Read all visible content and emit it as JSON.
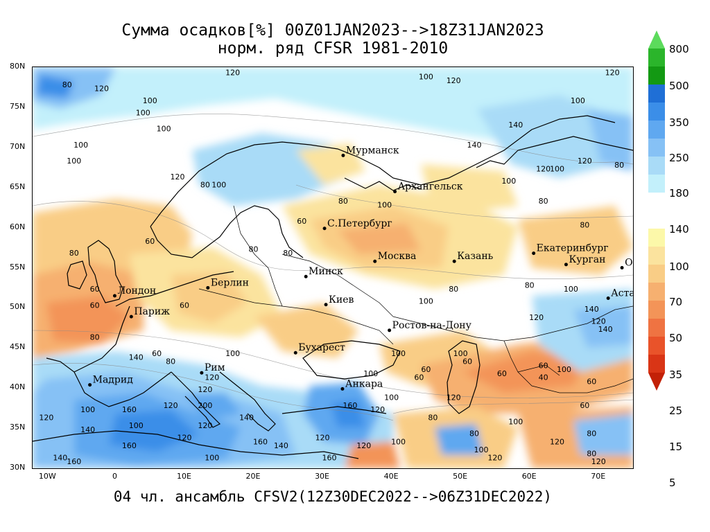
{
  "title": {
    "line1": "Сумма осадков[%] 00Z01JAN2023-->18Z31JAN2023",
    "line2": "норм. ряд CFSR 1981-2010"
  },
  "footer": "04 чл. ансамбль CFSV2(12Z30DEC2022-->06Z31DEC2022)",
  "map": {
    "lon_range": [
      -12,
      75
    ],
    "lat_range": [
      30,
      80
    ],
    "lat_ticks": [
      "80N",
      "75N",
      "70N",
      "65N",
      "60N",
      "55N",
      "50N",
      "45N",
      "40N",
      "35N",
      "30N"
    ],
    "lon_ticks": [
      "10W",
      "0",
      "10E",
      "20E",
      "30E",
      "40E",
      "50E",
      "60E",
      "70E"
    ],
    "cities": [
      {
        "name": "Мурманск",
        "lon": 33,
        "lat": 69
      },
      {
        "name": "Архангельск",
        "lon": 40.5,
        "lat": 64.5
      },
      {
        "name": "С.Петербург",
        "lon": 30.3,
        "lat": 59.9
      },
      {
        "name": "Москва",
        "lon": 37.6,
        "lat": 55.8
      },
      {
        "name": "Казань",
        "lon": 49.1,
        "lat": 55.8
      },
      {
        "name": "Екатеринбург",
        "lon": 60.6,
        "lat": 56.8
      },
      {
        "name": "Курган",
        "lon": 65.3,
        "lat": 55.4
      },
      {
        "name": "Омск",
        "lon": 73.4,
        "lat": 55
      },
      {
        "name": "Астана",
        "lon": 71.4,
        "lat": 51.2
      },
      {
        "name": "Минск",
        "lon": 27.6,
        "lat": 53.9
      },
      {
        "name": "Берлин",
        "lon": 13.4,
        "lat": 52.5
      },
      {
        "name": "Лондон",
        "lon": -0.1,
        "lat": 51.5
      },
      {
        "name": "Париж",
        "lon": 2.3,
        "lat": 48.9
      },
      {
        "name": "Киев",
        "lon": 30.5,
        "lat": 50.4
      },
      {
        "name": "Ростов-на-Дону",
        "lon": 39.7,
        "lat": 47.2
      },
      {
        "name": "Бухарест",
        "lon": 26.1,
        "lat": 44.4
      },
      {
        "name": "Анкара",
        "lon": 32.9,
        "lat": 39.9
      },
      {
        "name": "Рим",
        "lon": 12.5,
        "lat": 41.9
      },
      {
        "name": "Мадрид",
        "lon": -3.7,
        "lat": 40.4
      }
    ],
    "contour_labels": [
      {
        "v": "80",
        "lon": -7,
        "lat": 77.5
      },
      {
        "v": "100",
        "lon": 5,
        "lat": 75.5
      },
      {
        "v": "120",
        "lon": -2,
        "lat": 77
      },
      {
        "v": "100",
        "lon": 4,
        "lat": 74
      },
      {
        "v": "100",
        "lon": 7,
        "lat": 72
      },
      {
        "v": "100",
        "lon": -5,
        "lat": 70
      },
      {
        "v": "100",
        "lon": -6,
        "lat": 68
      },
      {
        "v": "120",
        "lon": 9,
        "lat": 66
      },
      {
        "v": "80",
        "lon": 13,
        "lat": 65
      },
      {
        "v": "100",
        "lon": 15,
        "lat": 65
      },
      {
        "v": "120",
        "lon": 17,
        "lat": 79
      },
      {
        "v": "100",
        "lon": 45,
        "lat": 78.5
      },
      {
        "v": "120",
        "lon": 49,
        "lat": 78
      },
      {
        "v": "120",
        "lon": 72,
        "lat": 79
      },
      {
        "v": "100",
        "lon": 67,
        "lat": 75.5
      },
      {
        "v": "140",
        "lon": 58,
        "lat": 72.5
      },
      {
        "v": "140",
        "lon": 52,
        "lat": 70
      },
      {
        "v": "120",
        "lon": 62,
        "lat": 67
      },
      {
        "v": "100",
        "lon": 64,
        "lat": 67
      },
      {
        "v": "120",
        "lon": 68,
        "lat": 68
      },
      {
        "v": "80",
        "lon": 73,
        "lat": 67.5
      },
      {
        "v": "100",
        "lon": 57,
        "lat": 65.5
      },
      {
        "v": "80",
        "lon": 62,
        "lat": 63
      },
      {
        "v": "80",
        "lon": 68,
        "lat": 60
      },
      {
        "v": "80",
        "lon": 33,
        "lat": 63
      },
      {
        "v": "100",
        "lon": 39,
        "lat": 62.5
      },
      {
        "v": "60",
        "lon": 27,
        "lat": 60.5
      },
      {
        "v": "80",
        "lon": 25,
        "lat": 56.5
      },
      {
        "v": "80",
        "lon": 20,
        "lat": 57
      },
      {
        "v": "60",
        "lon": 5,
        "lat": 58
      },
      {
        "v": "80",
        "lon": -6,
        "lat": 56.5
      },
      {
        "v": "60",
        "lon": -3,
        "lat": 52
      },
      {
        "v": "60",
        "lon": -3,
        "lat": 50
      },
      {
        "v": "60",
        "lon": 10,
        "lat": 50
      },
      {
        "v": "80",
        "lon": 49,
        "lat": 52
      },
      {
        "v": "100",
        "lon": 45,
        "lat": 50.5
      },
      {
        "v": "100",
        "lon": 66,
        "lat": 52
      },
      {
        "v": "80",
        "lon": 60,
        "lat": 52.5
      },
      {
        "v": "140",
        "lon": 69,
        "lat": 49.5
      },
      {
        "v": "120",
        "lon": 61,
        "lat": 48.5
      },
      {
        "v": "120",
        "lon": 70,
        "lat": 48
      },
      {
        "v": "140",
        "lon": 71,
        "lat": 47
      },
      {
        "v": "80",
        "lon": -3,
        "lat": 46
      },
      {
        "v": "140",
        "lon": 3,
        "lat": 43.5
      },
      {
        "v": "60",
        "lon": 6,
        "lat": 44
      },
      {
        "v": "80",
        "lon": 8,
        "lat": 43
      },
      {
        "v": "100",
        "lon": 17,
        "lat": 44
      },
      {
        "v": "120",
        "lon": 14,
        "lat": 41
      },
      {
        "v": "120",
        "lon": 13,
        "lat": 39.5
      },
      {
        "v": "200",
        "lon": 13,
        "lat": 37.5
      },
      {
        "v": "120",
        "lon": 8,
        "lat": 37.5
      },
      {
        "v": "160",
        "lon": 2,
        "lat": 37
      },
      {
        "v": "100",
        "lon": -4,
        "lat": 37
      },
      {
        "v": "120",
        "lon": -10,
        "lat": 36
      },
      {
        "v": "140",
        "lon": -4,
        "lat": 34.5
      },
      {
        "v": "100",
        "lon": 3,
        "lat": 35
      },
      {
        "v": "160",
        "lon": 2,
        "lat": 32.5
      },
      {
        "v": "120",
        "lon": 10,
        "lat": 33.5
      },
      {
        "v": "120",
        "lon": 13,
        "lat": 35
      },
      {
        "v": "140",
        "lon": -8,
        "lat": 31
      },
      {
        "v": "160",
        "lon": -6,
        "lat": 30.5
      },
      {
        "v": "100",
        "lon": 14,
        "lat": 31
      },
      {
        "v": "140",
        "lon": 19,
        "lat": 36
      },
      {
        "v": "160",
        "lon": 21,
        "lat": 33
      },
      {
        "v": "140",
        "lon": 24,
        "lat": 32.5
      },
      {
        "v": "160",
        "lon": 31,
        "lat": 31
      },
      {
        "v": "160",
        "lon": 34,
        "lat": 37.5
      },
      {
        "v": "120",
        "lon": 38,
        "lat": 37
      },
      {
        "v": "120",
        "lon": 30,
        "lat": 33.5
      },
      {
        "v": "100",
        "lon": 41,
        "lat": 33
      },
      {
        "v": "120",
        "lon": 36,
        "lat": 32.5
      },
      {
        "v": "100",
        "lon": 37,
        "lat": 41.5
      },
      {
        "v": "100",
        "lon": 41,
        "lat": 44
      },
      {
        "v": "100",
        "lon": 50,
        "lat": 44
      },
      {
        "v": "60",
        "lon": 51,
        "lat": 43
      },
      {
        "v": "60",
        "lon": 45,
        "lat": 42
      },
      {
        "v": "60",
        "lon": 44,
        "lat": 41
      },
      {
        "v": "120",
        "lon": 49,
        "lat": 38.5
      },
      {
        "v": "100",
        "lon": 40,
        "lat": 38.5
      },
      {
        "v": "80",
        "lon": 46,
        "lat": 36
      },
      {
        "v": "80",
        "lon": 52,
        "lat": 34
      },
      {
        "v": "100",
        "lon": 58,
        "lat": 35.5
      },
      {
        "v": "100",
        "lon": 53,
        "lat": 32
      },
      {
        "v": "120",
        "lon": 55,
        "lat": 31
      },
      {
        "v": "60",
        "lon": 56,
        "lat": 41.5
      },
      {
        "v": "60",
        "lon": 62,
        "lat": 42.5
      },
      {
        "v": "40",
        "lon": 62,
        "lat": 41
      },
      {
        "v": "100",
        "lon": 65,
        "lat": 42
      },
      {
        "v": "60",
        "lon": 68,
        "lat": 37.5
      },
      {
        "v": "80",
        "lon": 69,
        "lat": 34
      },
      {
        "v": "80",
        "lon": 69,
        "lat": 31.5
      },
      {
        "v": "120",
        "lon": 70,
        "lat": 30.5
      },
      {
        "v": "60",
        "lon": 69,
        "lat": 40.5
      },
      {
        "v": "120",
        "lon": 64,
        "lat": 33
      }
    ]
  },
  "colorbar": {
    "labels": [
      "800",
      "500",
      "350",
      "250",
      "180",
      "140",
      "100",
      "70",
      "50",
      "35",
      "25",
      "15",
      "5"
    ],
    "upper_colors": [
      "#5cdb5c",
      "#2bb52b",
      "#139913",
      "#1f6fd6",
      "#3b8ee8",
      "#5fa8f0",
      "#86c1f5",
      "#a9dbf7",
      "#c3f0fb"
    ],
    "lower_colors": [
      "#fcf8a9",
      "#fbe39e",
      "#f9cd86",
      "#f6b070",
      "#f39458",
      "#ef7342",
      "#e9532a",
      "#d93516",
      "#c32107"
    ]
  }
}
